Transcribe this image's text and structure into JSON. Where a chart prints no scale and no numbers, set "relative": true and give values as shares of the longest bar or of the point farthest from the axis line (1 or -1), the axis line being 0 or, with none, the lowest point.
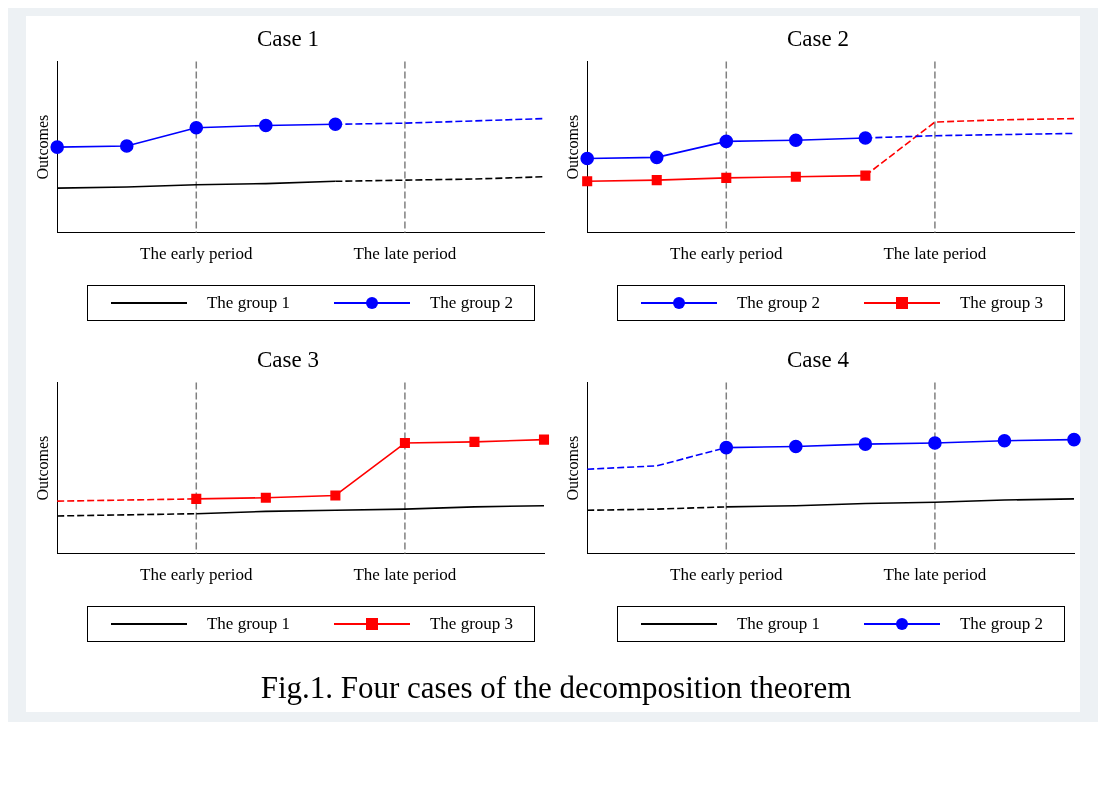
{
  "chart_data": [
    {
      "type": "line",
      "title": "Case 1",
      "ylabel": "Outcomes",
      "relative": true,
      "legend": "bottom",
      "line_style": "solid",
      "marker": "none",
      "categories": [
        null,
        null,
        "The early period",
        null,
        null,
        "The late period",
        null,
        null
      ],
      "ref_lines": [
        {
          "axis": "x",
          "value": "The early period",
          "color": "#808080",
          "line_style": "dashed"
        },
        {
          "axis": "x",
          "value": "The late period",
          "color": "#808080",
          "line_style": "dashed"
        }
      ],
      "series": [
        {
          "name": "The group 1",
          "color": "#000000",
          "values": [
            0.39,
            0.4,
            0.42,
            0.43,
            0.45,
            null,
            null,
            null
          ]
        },
        {
          "color": "#000000",
          "line_style": "dashed",
          "values": [
            null,
            null,
            null,
            null,
            0.45,
            0.46,
            0.47,
            0.49
          ]
        },
        {
          "name": "The group 2",
          "color": "#0000ff",
          "marker": "circle",
          "values": [
            0.75,
            0.76,
            0.92,
            0.94,
            0.95,
            null,
            null,
            null
          ]
        },
        {
          "color": "#0000ff",
          "line_style": "dashed",
          "values": [
            null,
            null,
            null,
            null,
            0.95,
            0.96,
            0.98,
            1
          ]
        }
      ]
    },
    {
      "type": "line",
      "title": "Case 2",
      "ylabel": "Outcomes",
      "relative": true,
      "legend": "bottom",
      "line_style": "solid",
      "marker": "none",
      "categories": [
        null,
        null,
        "The early period",
        null,
        null,
        "The late period",
        null,
        null
      ],
      "ref_lines": [
        {
          "axis": "x",
          "value": "The early period",
          "color": "#808080",
          "line_style": "dashed"
        },
        {
          "axis": "x",
          "value": "The late period",
          "color": "#808080",
          "line_style": "dashed"
        }
      ],
      "series": [
        {
          "name": "The group 2",
          "color": "#0000ff",
          "marker": "circle",
          "values": [
            0.65,
            0.66,
            0.8,
            0.81,
            0.83,
            null,
            null,
            null
          ]
        },
        {
          "color": "#0000ff",
          "line_style": "dashed",
          "values": [
            null,
            null,
            null,
            null,
            0.83,
            0.85,
            0.86,
            0.87
          ]
        },
        {
          "name": "The group 3",
          "color": "#ff0000",
          "marker": "square",
          "values": [
            0.45,
            0.46,
            0.48,
            0.49,
            0.5,
            null,
            null,
            null
          ]
        },
        {
          "color": "#ff0000",
          "line_style": "dashed",
          "values": [
            null,
            null,
            null,
            null,
            0.5,
            0.97,
            0.99,
            1
          ]
        }
      ]
    },
    {
      "type": "line",
      "title": "Case 3",
      "ylabel": "Outcomes",
      "relative": true,
      "legend": "bottom",
      "line_style": "solid",
      "marker": "none",
      "categories": [
        null,
        null,
        "The early period",
        null,
        null,
        "The late period",
        null,
        null
      ],
      "ref_lines": [
        {
          "axis": "x",
          "value": "The early period",
          "color": "#808080",
          "line_style": "dashed"
        },
        {
          "axis": "x",
          "value": "The late period",
          "color": "#808080",
          "line_style": "dashed"
        }
      ],
      "series": [
        {
          "color": "#000000",
          "line_style": "dashed",
          "values": [
            0.33,
            0.34,
            0.35,
            null,
            null,
            null,
            null,
            null
          ]
        },
        {
          "name": "The group 1",
          "color": "#000000",
          "values": [
            null,
            null,
            0.35,
            0.37,
            0.38,
            0.39,
            0.41,
            0.42
          ]
        },
        {
          "color": "#ff0000",
          "line_style": "dashed",
          "values": [
            0.46,
            0.47,
            0.48,
            null,
            null,
            null,
            null,
            null
          ]
        },
        {
          "name": "The group 3",
          "color": "#ff0000",
          "marker": "square",
          "values": [
            null,
            null,
            0.48,
            0.49,
            0.51,
            0.97,
            0.98,
            1
          ]
        }
      ]
    },
    {
      "type": "line",
      "title": "Case 4",
      "ylabel": "Outcomes",
      "relative": true,
      "legend": "bottom",
      "line_style": "solid",
      "marker": "none",
      "categories": [
        null,
        null,
        "The early period",
        null,
        null,
        "The late period",
        null,
        null
      ],
      "ref_lines": [
        {
          "axis": "x",
          "value": "The early period",
          "color": "#808080",
          "line_style": "dashed"
        },
        {
          "axis": "x",
          "value": "The late period",
          "color": "#808080",
          "line_style": "dashed"
        }
      ],
      "series": [
        {
          "color": "#000000",
          "line_style": "dashed",
          "values": [
            0.38,
            0.39,
            0.41,
            null,
            null,
            null,
            null,
            null
          ]
        },
        {
          "name": "The group 1",
          "color": "#000000",
          "values": [
            null,
            null,
            0.41,
            0.42,
            0.44,
            0.45,
            0.47,
            0.48
          ]
        },
        {
          "color": "#0000ff",
          "line_style": "dashed",
          "values": [
            0.74,
            0.77,
            0.93,
            null,
            null,
            null,
            null,
            null
          ]
        },
        {
          "name": "The group 2",
          "color": "#0000ff",
          "marker": "circle",
          "values": [
            null,
            null,
            0.93,
            0.94,
            0.96,
            0.97,
            0.99,
            1
          ]
        }
      ]
    },
    {
      "type": "other",
      "title": "Fig.1. Four cases of the decomposition theorem"
    }
  ]
}
